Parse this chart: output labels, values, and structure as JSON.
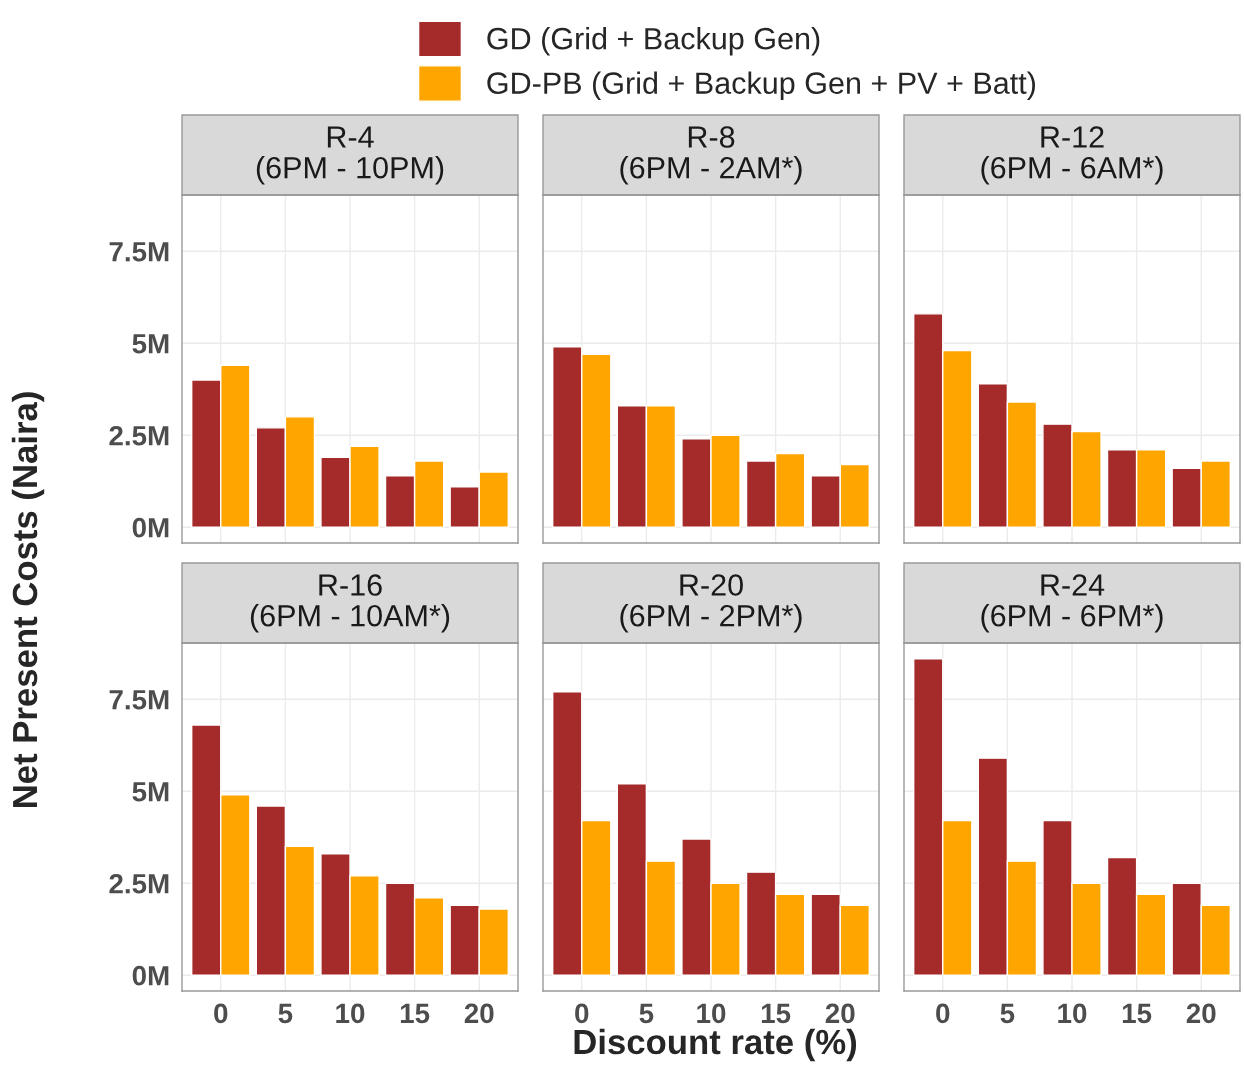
{
  "chart_data": [
    {
      "type": "bar",
      "title": "R-4\n(6PM - 10PM)",
      "ylabel": "Net Present Costs (Naira)",
      "categories": [
        "0",
        "5",
        "10",
        "15",
        "20"
      ],
      "legend": "top",
      "grid": true,
      "tick_labels": "y",
      "ylim": [
        -0.43,
        9.03
      ],
      "yticks": [
        {
          "value": 0,
          "label": "0M"
        },
        {
          "value": 2.5,
          "label": "2.5M"
        },
        {
          "value": 5,
          "label": "5M"
        },
        {
          "value": 7.5,
          "label": "7.5M"
        }
      ],
      "series": [
        {
          "name": "GD (Grid + Backup Gen)",
          "color": "#a52a2a",
          "values": [
            4.0,
            2.7,
            1.9,
            1.4,
            1.1
          ]
        },
        {
          "name": "GD-PB (Grid + Backup Gen + PV + Batt)",
          "color": "#ffa500",
          "values": [
            4.4,
            3.0,
            2.2,
            1.8,
            1.5
          ]
        }
      ]
    },
    {
      "type": "bar",
      "title": "R-8\n(6PM - 2AM*)",
      "categories": [
        "0",
        "5",
        "10",
        "15",
        "20"
      ],
      "grid": true,
      "tick_labels": false,
      "ylim": [
        -0.43,
        9.03
      ],
      "yticks": [
        {
          "value": 0,
          "label": null
        },
        {
          "value": 2.5,
          "label": null
        },
        {
          "value": 5,
          "label": null
        },
        {
          "value": 7.5,
          "label": null
        }
      ],
      "series": [
        {
          "color": "#a52a2a",
          "values": [
            4.9,
            3.3,
            2.4,
            1.8,
            1.4
          ]
        },
        {
          "color": "#ffa500",
          "values": [
            4.7,
            3.3,
            2.5,
            2.0,
            1.7
          ]
        }
      ]
    },
    {
      "type": "bar",
      "title": "R-12\n(6PM - 6AM*)",
      "categories": [
        "0",
        "5",
        "10",
        "15",
        "20"
      ],
      "grid": true,
      "tick_labels": false,
      "ylim": [
        -0.43,
        9.03
      ],
      "yticks": [
        {
          "value": 0,
          "label": null
        },
        {
          "value": 2.5,
          "label": null
        },
        {
          "value": 5,
          "label": null
        },
        {
          "value": 7.5,
          "label": null
        }
      ],
      "series": [
        {
          "color": "#a52a2a",
          "values": [
            5.8,
            3.9,
            2.8,
            2.1,
            1.6
          ]
        },
        {
          "color": "#ffa500",
          "values": [
            4.8,
            3.4,
            2.6,
            2.1,
            1.8
          ]
        }
      ]
    },
    {
      "type": "bar",
      "title": "R-16\n(6PM - 10AM*)",
      "categories": [
        "0",
        "5",
        "10",
        "15",
        "20"
      ],
      "grid": true,
      "ylim": [
        -0.43,
        9.03
      ],
      "yticks": [
        {
          "value": 0,
          "label": "0M"
        },
        {
          "value": 2.5,
          "label": "2.5M"
        },
        {
          "value": 5,
          "label": "5M"
        },
        {
          "value": 7.5,
          "label": "7.5M"
        }
      ],
      "series": [
        {
          "color": "#a52a2a",
          "values": [
            6.8,
            4.6,
            3.3,
            2.5,
            1.9
          ]
        },
        {
          "color": "#ffa500",
          "values": [
            4.9,
            3.5,
            2.7,
            2.1,
            1.8
          ]
        }
      ]
    },
    {
      "type": "bar",
      "title": "R-20\n(6PM - 2PM*)",
      "xlabel": "Discount rate (%)",
      "categories": [
        "0",
        "5",
        "10",
        "15",
        "20"
      ],
      "grid": true,
      "tick_labels": "x",
      "ylim": [
        -0.43,
        9.03
      ],
      "yticks": [
        {
          "value": 0,
          "label": null
        },
        {
          "value": 2.5,
          "label": null
        },
        {
          "value": 5,
          "label": null
        },
        {
          "value": 7.5,
          "label": null
        }
      ],
      "series": [
        {
          "color": "#a52a2a",
          "values": [
            7.7,
            5.2,
            3.7,
            2.8,
            2.2
          ]
        },
        {
          "color": "#ffa500",
          "values": [
            4.2,
            3.1,
            2.5,
            2.2,
            1.9
          ]
        }
      ]
    },
    {
      "type": "bar",
      "title": "R-24\n(6PM - 6PM*)",
      "categories": [
        "0",
        "5",
        "10",
        "15",
        "20"
      ],
      "grid": true,
      "tick_labels": "x",
      "ylim": [
        -0.43,
        9.03
      ],
      "yticks": [
        {
          "value": 0,
          "label": null
        },
        {
          "value": 2.5,
          "label": null
        },
        {
          "value": 5,
          "label": null
        },
        {
          "value": 7.5,
          "label": null
        }
      ],
      "series": [
        {
          "color": "#a52a2a",
          "values": [
            8.6,
            5.9,
            4.2,
            3.2,
            2.5
          ]
        },
        {
          "color": "#ffa500",
          "values": [
            4.2,
            3.1,
            2.5,
            2.2,
            1.9
          ]
        }
      ]
    }
  ]
}
